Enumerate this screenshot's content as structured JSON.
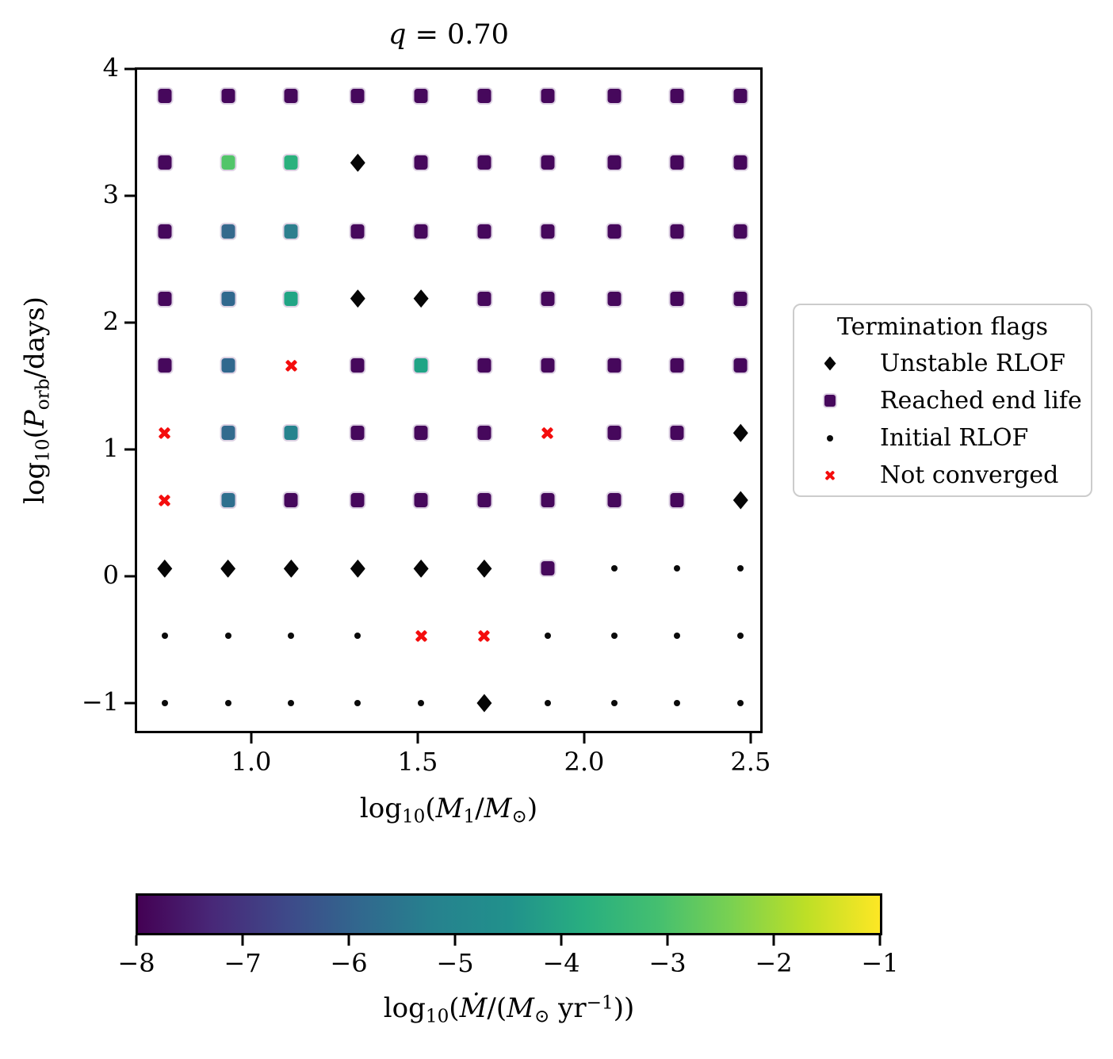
{
  "title": {
    "var": "q",
    "rest": " = 0.70"
  },
  "axes": {
    "xlabel": {
      "log": "log",
      "logsub": "10",
      "open": "(",
      "var1": "M",
      "var1sub": "1",
      "slash": "/",
      "var2": "M",
      "var2sub": "⊙",
      "close": ")"
    },
    "ylabel": {
      "log": "log",
      "logsub": "10",
      "open": "(",
      "var1": "P",
      "var1sub": "orb",
      "rest": "/days)"
    },
    "xticks": [
      {
        "value": 1.0,
        "label": "1.0"
      },
      {
        "value": 1.5,
        "label": "1.5"
      },
      {
        "value": 2.0,
        "label": "2.0"
      },
      {
        "value": 2.5,
        "label": "2.5"
      }
    ],
    "yticks": [
      {
        "value": 4,
        "label": "4"
      },
      {
        "value": 3,
        "label": "3"
      },
      {
        "value": 2,
        "label": "2"
      },
      {
        "value": 1,
        "label": "1"
      },
      {
        "value": 0,
        "label": "0"
      },
      {
        "value": -1,
        "label": "−1"
      }
    ]
  },
  "legend": {
    "title": "Termination flags",
    "items": [
      {
        "marker": "diamond",
        "label": "Unstable RLOF",
        "color": "#060606"
      },
      {
        "marker": "square",
        "label": "Reached end life",
        "color": "#46085c"
      },
      {
        "marker": "dot",
        "label": "Initial RLOF",
        "color": "#0b0b0b"
      },
      {
        "marker": "x",
        "label": "Not converged",
        "color": "#f40d0d"
      }
    ]
  },
  "colorbar": {
    "colormap": "viridis",
    "vmin": -8,
    "vmax": -1,
    "ticks": [
      {
        "value": -8,
        "label": "−8"
      },
      {
        "value": -7,
        "label": "−7"
      },
      {
        "value": -6,
        "label": "−6"
      },
      {
        "value": -5,
        "label": "−5"
      },
      {
        "value": -4,
        "label": "−4"
      },
      {
        "value": -3,
        "label": "−3"
      },
      {
        "value": -2,
        "label": "−2"
      },
      {
        "value": -1,
        "label": "−1"
      }
    ],
    "label": {
      "log": "log",
      "logsub": "10",
      "open": "(",
      "var1": "Ṁ",
      "mid": "/(",
      "var2": "M",
      "var2sub": "⊙",
      "unit": " yr",
      "unitsup": "−1",
      "close": "))"
    }
  },
  "chart_data": {
    "type": "scatter",
    "title": "q = 0.70",
    "xlabel_text": "log10(M1/M⊙)",
    "ylabel_text": "log10(Porb/days)",
    "colorbar_label_text": "log10(Mdot/(M⊙ yr−1))",
    "xlim": [
      0.65,
      2.536
    ],
    "ylim": [
      -1.2375,
      4.0125
    ],
    "grid_on": false,
    "legend_position": "right of axes",
    "x_values": [
      0.74,
      0.93,
      1.12,
      1.32,
      1.51,
      1.7,
      1.89,
      2.09,
      2.28,
      2.47
    ],
    "y_values": [
      3.79,
      3.26,
      2.72,
      2.19,
      1.66,
      1.13,
      0.6,
      0.06,
      -0.47,
      -1.0
    ],
    "marker_codes": {
      "S": "Reached end life (rounded square, colored by log10 Mdot)",
      "D": "Unstable RLOF (black thin diamond)",
      "o": "Initial RLOF (small black dot)",
      "X": "Not converged (red bold x)"
    },
    "cells": [
      [
        "S",
        "S",
        "S",
        "S",
        "S",
        "S",
        "S",
        "S",
        "S",
        "S"
      ],
      [
        "S",
        "S",
        "S",
        "D",
        "S",
        "S",
        "S",
        "S",
        "S",
        "S"
      ],
      [
        "S",
        "S",
        "S",
        "S",
        "S",
        "S",
        "S",
        "S",
        "S",
        "S"
      ],
      [
        "S",
        "S",
        "S",
        "D",
        "D",
        "S",
        "S",
        "S",
        "S",
        "S"
      ],
      [
        "S",
        "S",
        "X",
        "S",
        "S",
        "S",
        "S",
        "S",
        "S",
        "S"
      ],
      [
        "X",
        "S",
        "S",
        "S",
        "S",
        "S",
        "X",
        "S",
        "S",
        "D"
      ],
      [
        "X",
        "S",
        "S",
        "S",
        "S",
        "S",
        "S",
        "S",
        "S",
        "D"
      ],
      [
        "D",
        "D",
        "D",
        "D",
        "D",
        "D",
        "S",
        "o",
        "o",
        "o"
      ],
      [
        "o",
        "o",
        "o",
        "o",
        "X",
        "X",
        "o",
        "o",
        "o",
        "o"
      ],
      [
        "o",
        "o",
        "o",
        "o",
        "o",
        "D",
        "o",
        "o",
        "o",
        "o"
      ]
    ],
    "square_default_color": "#46085c",
    "square_color_overrides": {
      "1,1": "#52c569",
      "1,2": "#2ab17d",
      "2,1": "#35698d",
      "2,2": "#2d7f8e",
      "3,1": "#31688e",
      "3,2": "#21a585",
      "4,1": "#31688e",
      "4,4": "#20a486",
      "5,1": "#336b8e",
      "5,2": "#26838e",
      "6,1": "#2f6f8e"
    },
    "mdot_log10_estimates": {
      "default_purple": -7.8,
      "1,1": -2.8,
      "1,2": -3.4,
      "2,1": -5.8,
      "2,2": -5.4,
      "3,1": -5.9,
      "3,2": -4.0,
      "4,1": -5.9,
      "4,4": -4.0,
      "5,1": -5.8,
      "5,2": -5.2,
      "6,1": -5.7
    }
  },
  "colors": {
    "square_edge": "#ddd2e3",
    "black_marker": "#060606",
    "red_x": "#f40d0d",
    "spine": "#000000",
    "legend_border": "#cccccc"
  }
}
